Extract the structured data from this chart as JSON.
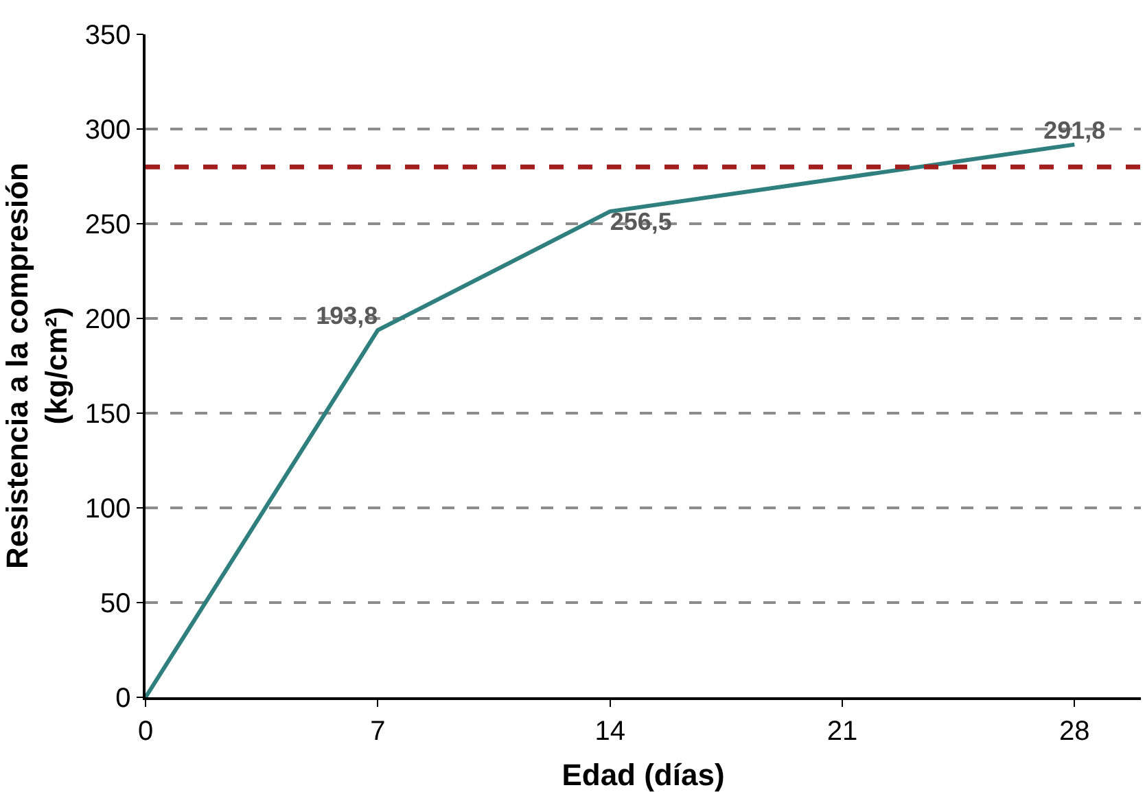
{
  "chart_data": {
    "type": "line",
    "xlabel": "Edad (días)",
    "ylabel": "Resistencia a la compresión\n(kg/cm²)",
    "x": [
      0,
      7,
      14,
      28
    ],
    "series": [
      {
        "color": "#2e7f7d",
        "values": [
          0,
          193.8,
          256.5,
          291.8
        ],
        "value_labels": [
          null,
          "193,8",
          "256,5",
          "291,8"
        ]
      }
    ],
    "xlim": [
      0,
      30
    ],
    "xticks": [
      0,
      7,
      14,
      21,
      28
    ],
    "ylim": [
      0,
      350
    ],
    "yticks": [
      0,
      50,
      100,
      150,
      200,
      250,
      300,
      350
    ],
    "ref_lines": [
      {
        "axis": "y",
        "value": 280,
        "color": "#a31f1f",
        "line_style": "dashed"
      }
    ],
    "grid": "y",
    "marker": "none",
    "line_style": "solid"
  }
}
